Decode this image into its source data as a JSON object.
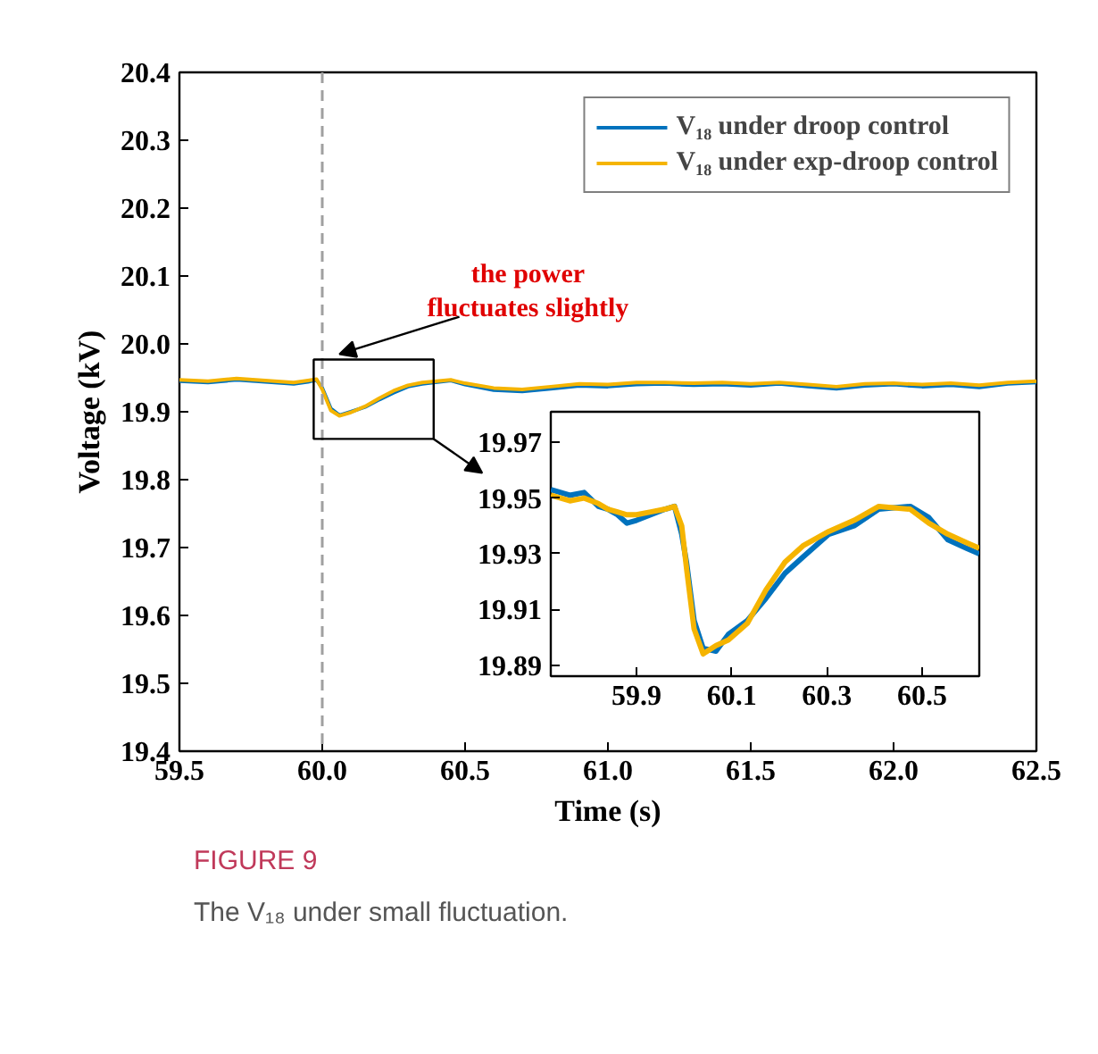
{
  "chart_data": [
    {
      "type": "line",
      "xlabel": "Time (s)",
      "ylabel": "Voltage (kV)",
      "x": [
        59.5,
        59.6,
        59.7,
        59.8,
        59.9,
        59.95,
        59.98,
        60.0,
        60.03,
        60.06,
        60.1,
        60.15,
        60.2,
        60.25,
        60.3,
        60.35,
        60.45,
        60.5,
        60.6,
        60.7,
        60.8,
        60.9,
        61.0,
        61.1,
        61.2,
        61.3,
        61.4,
        61.5,
        61.6,
        61.7,
        61.8,
        61.9,
        62.0,
        62.1,
        62.2,
        62.3,
        62.4,
        62.5
      ],
      "series": [
        {
          "name": "V₁₈ under droop control",
          "color": "#0072bd",
          "values": [
            19.945,
            19.943,
            19.947,
            19.944,
            19.941,
            19.944,
            19.947,
            19.935,
            19.905,
            19.895,
            19.9,
            19.907,
            19.918,
            19.928,
            19.937,
            19.941,
            19.946,
            19.94,
            19.932,
            19.93,
            19.934,
            19.938,
            19.937,
            19.94,
            19.941,
            19.939,
            19.94,
            19.938,
            19.941,
            19.937,
            19.934,
            19.938,
            19.94,
            19.937,
            19.939,
            19.936,
            19.941,
            19.943
          ]
        },
        {
          "name": "V₁₈ under exp-droop control",
          "color": "#f5b400",
          "values": [
            19.947,
            19.945,
            19.949,
            19.946,
            19.943,
            19.946,
            19.948,
            19.933,
            19.902,
            19.894,
            19.899,
            19.908,
            19.92,
            19.931,
            19.939,
            19.943,
            19.947,
            19.942,
            19.935,
            19.933,
            19.937,
            19.941,
            19.94,
            19.943,
            19.943,
            19.942,
            19.943,
            19.941,
            19.943,
            19.94,
            19.937,
            19.941,
            19.942,
            19.94,
            19.942,
            19.939,
            19.943,
            19.945
          ]
        }
      ],
      "xlim": [
        59.5,
        62.5
      ],
      "ylim": [
        19.4,
        20.4
      ],
      "xticks": [
        59.5,
        {
          "value": 60,
          "label": "60.0"
        },
        60.5,
        {
          "value": 61,
          "label": "61.0"
        },
        61.5,
        {
          "value": 62,
          "label": "62.0"
        },
        62.5
      ],
      "yticks": [
        19.4,
        19.5,
        19.6,
        19.7,
        19.8,
        19.9,
        {
          "value": 20,
          "label": "20.0"
        },
        20.1,
        20.2,
        20.3,
        20.4
      ],
      "legend": "top right",
      "grid": false,
      "ref_lines": [
        {
          "axis": "x",
          "value": 60,
          "label": null,
          "color": "#a0a0a0",
          "line_style": "dashed"
        }
      ],
      "annotations": [
        "the power\nfluctuates slightly",
        "FIGURE 9",
        "The V₁₈ under small fluctuation."
      ]
    },
    {
      "type": "line",
      "series": [
        {
          "color": "#0072bd",
          "x": [
            59.72,
            59.76,
            59.79,
            59.82,
            59.84,
            59.86,
            59.88,
            59.9,
            59.93,
            59.96,
            59.98,
            59.995,
            60.005,
            60.021,
            60.04,
            60.067,
            60.093,
            60.133,
            60.172,
            60.212,
            60.251,
            60.304,
            60.357,
            60.409,
            60.475,
            60.514,
            60.554,
            60.593,
            60.62
          ],
          "values": [
            19.953,
            19.951,
            19.952,
            19.947,
            19.946,
            19.944,
            19.941,
            19.942,
            19.944,
            19.946,
            19.947,
            19.937,
            19.927,
            19.906,
            19.896,
            19.895,
            19.901,
            19.906,
            19.914,
            19.923,
            19.929,
            19.937,
            19.94,
            19.946,
            19.947,
            19.943,
            19.935,
            19.932,
            19.93
          ]
        },
        {
          "color": "#f5b400",
          "x": [
            59.72,
            59.76,
            59.79,
            59.82,
            59.84,
            59.86,
            59.88,
            59.9,
            59.93,
            59.96,
            59.98,
            59.995,
            60.005,
            60.021,
            60.04,
            60.067,
            60.093,
            60.133,
            60.172,
            60.212,
            60.251,
            60.304,
            60.357,
            60.409,
            60.475,
            60.514,
            60.554,
            60.593,
            60.62
          ],
          "values": [
            19.951,
            19.949,
            19.95,
            19.948,
            19.946,
            19.945,
            19.944,
            19.944,
            19.945,
            19.946,
            19.947,
            19.94,
            19.925,
            19.903,
            19.894,
            19.897,
            19.899,
            19.905,
            19.917,
            19.927,
            19.933,
            19.938,
            19.942,
            19.947,
            19.946,
            19.941,
            19.937,
            19.934,
            19.932
          ]
        }
      ],
      "xlim": [
        59.72,
        60.62
      ],
      "ylim": [
        19.886,
        19.981
      ],
      "xticks": [
        59.9,
        60.1,
        60.3,
        60.5
      ],
      "yticks": [
        19.89,
        19.91,
        19.93,
        19.95,
        19.97
      ]
    }
  ]
}
